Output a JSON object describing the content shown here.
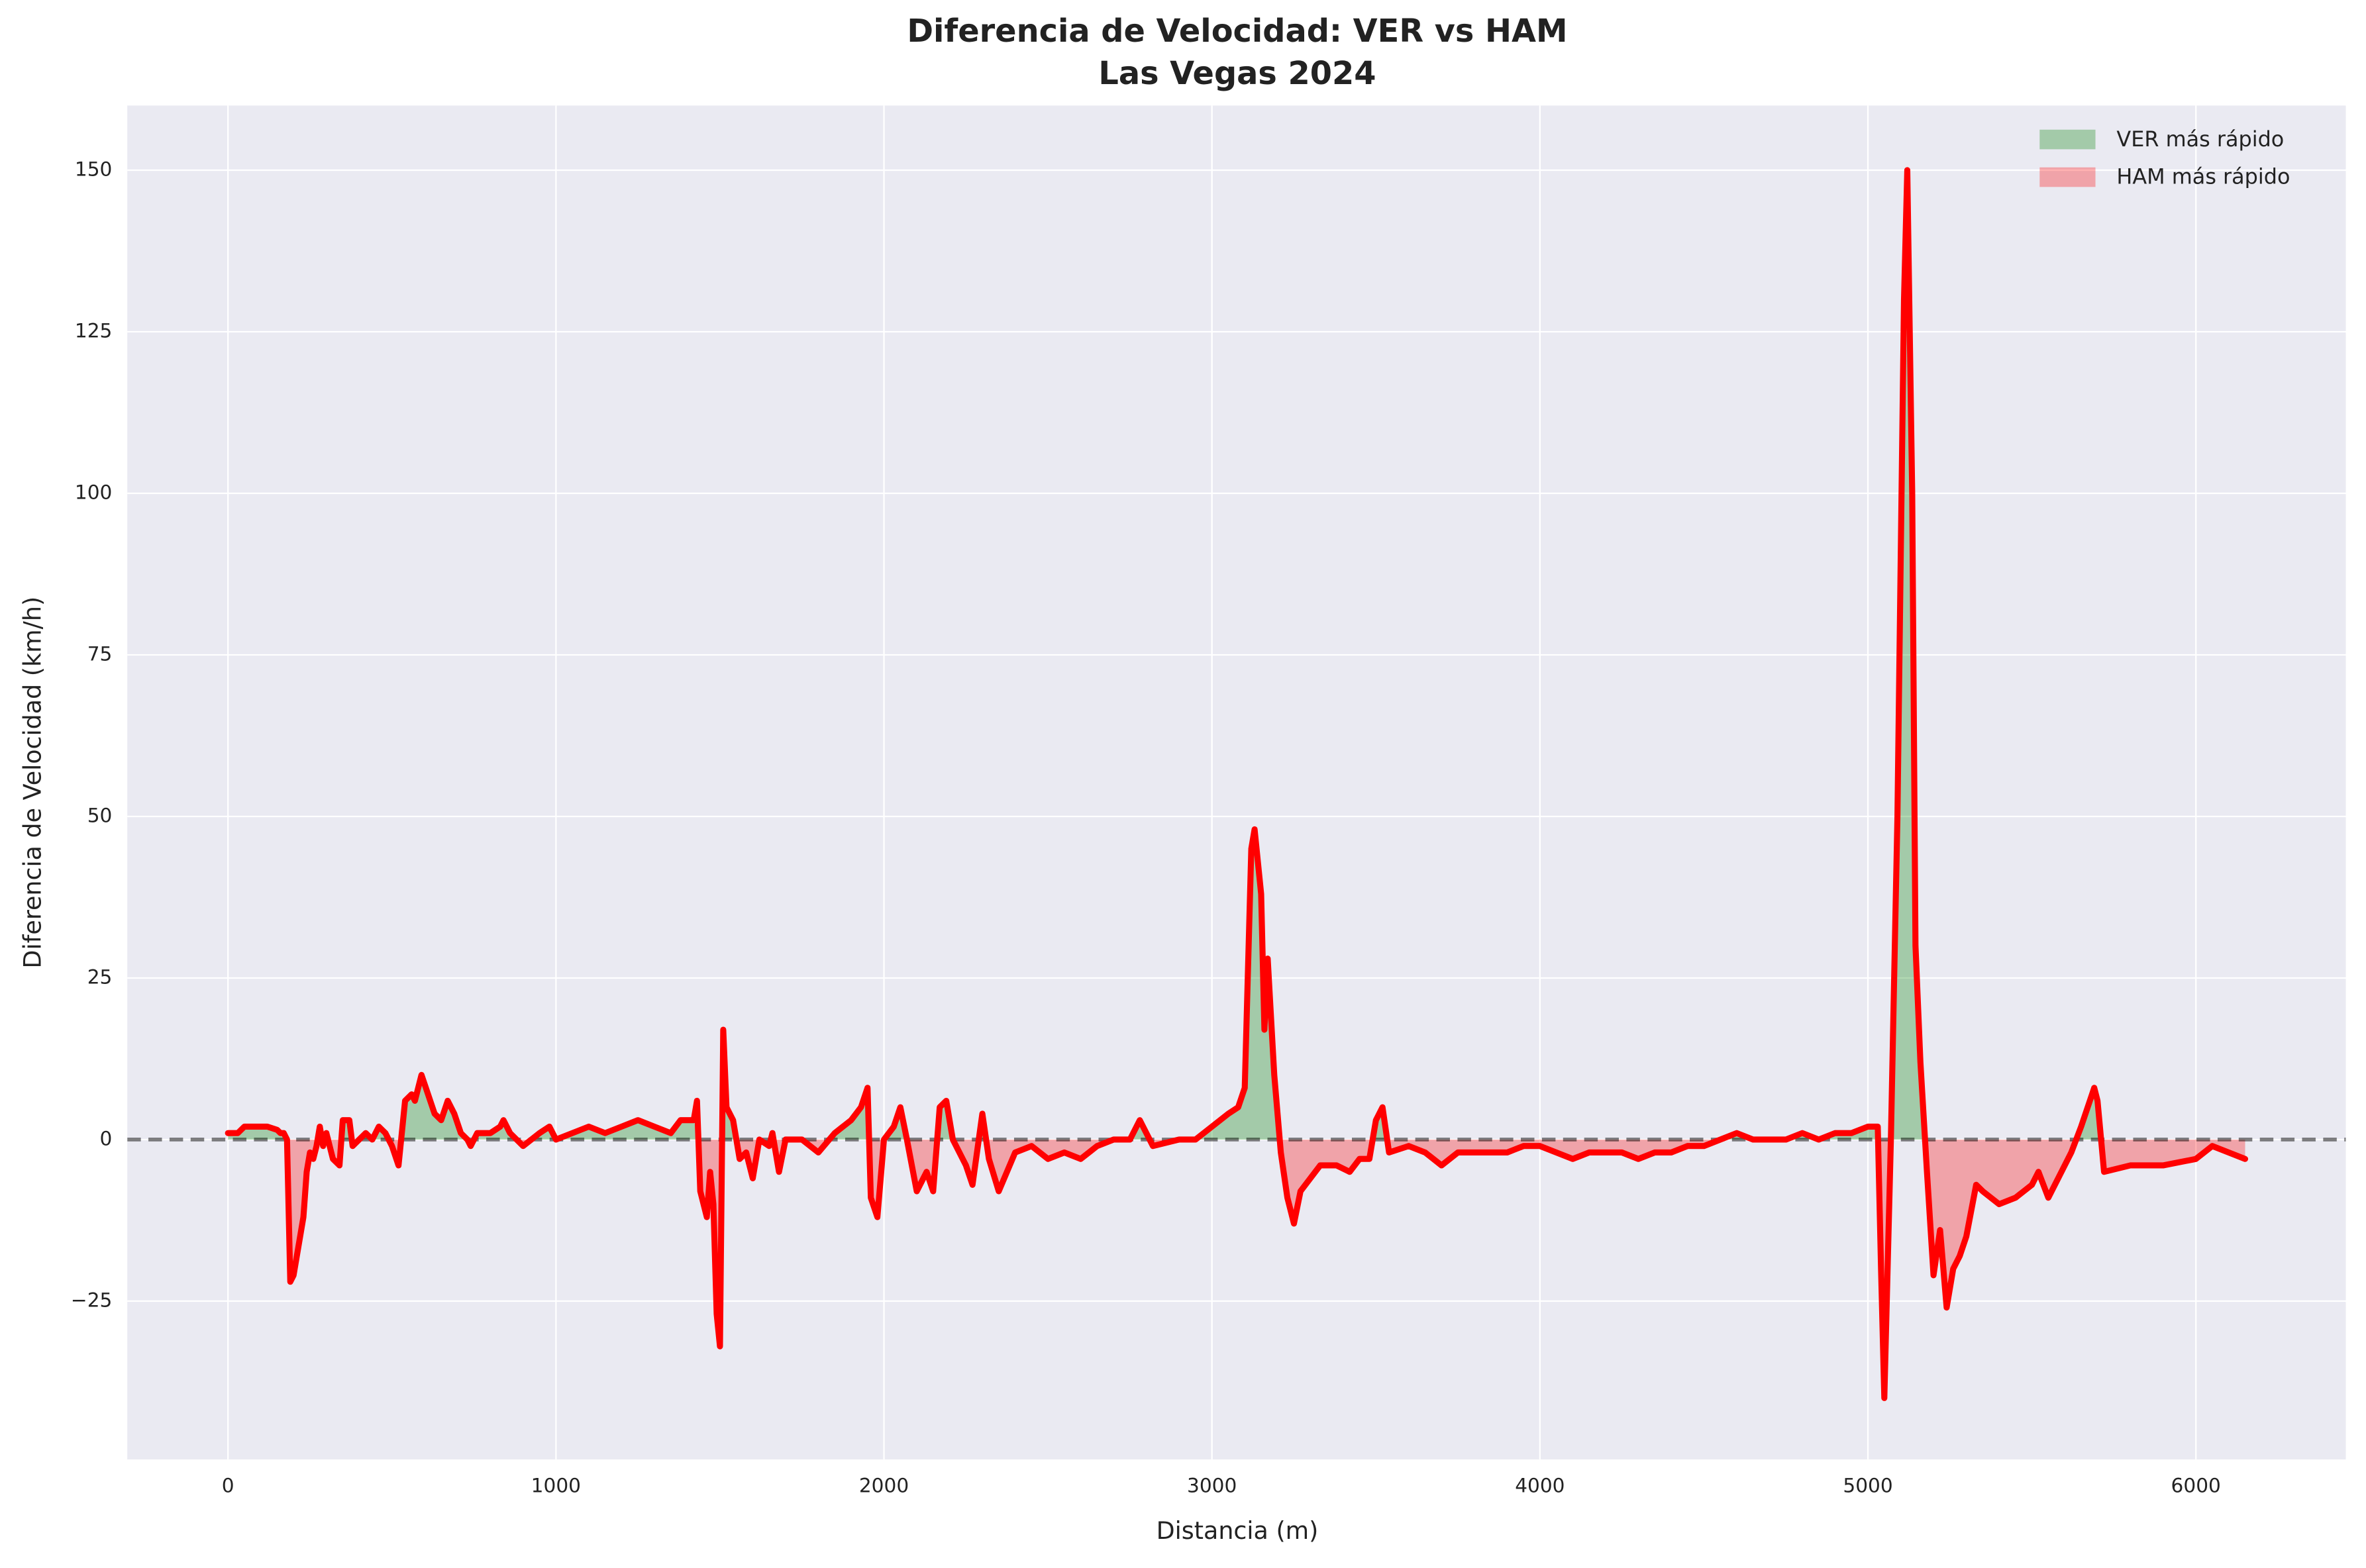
{
  "chart_data": {
    "type": "line",
    "title": "Diferencia de Velocidad: VER vs HAM",
    "subtitle": "Las Vegas 2024",
    "x_label": "Distancia (m)",
    "y_label": "Diferencia de Velocidad (km/h)",
    "x": [
      0,
      30,
      50,
      100,
      120,
      150,
      160,
      170,
      180,
      190,
      200,
      210,
      220,
      230,
      240,
      250,
      260,
      270,
      280,
      290,
      300,
      320,
      340,
      350,
      370,
      380,
      400,
      420,
      440,
      460,
      480,
      500,
      520,
      540,
      560,
      570,
      590,
      610,
      630,
      650,
      670,
      690,
      710,
      730,
      740,
      760,
      800,
      830,
      840,
      860,
      900,
      950,
      980,
      1000,
      1050,
      1100,
      1150,
      1200,
      1250,
      1300,
      1350,
      1380,
      1420,
      1430,
      1440,
      1460,
      1470,
      1480,
      1490,
      1500,
      1510,
      1520,
      1540,
      1560,
      1580,
      1600,
      1620,
      1650,
      1660,
      1680,
      1700,
      1750,
      1800,
      1850,
      1900,
      1930,
      1950,
      1960,
      1980,
      2000,
      2030,
      2050,
      2070,
      2100,
      2130,
      2150,
      2170,
      2190,
      2210,
      2250,
      2270,
      2300,
      2320,
      2350,
      2400,
      2450,
      2500,
      2550,
      2600,
      2650,
      2700,
      2750,
      2780,
      2820,
      2900,
      2950,
      3000,
      3050,
      3080,
      3100,
      3120,
      3130,
      3150,
      3160,
      3170,
      3190,
      3210,
      3230,
      3250,
      3270,
      3300,
      3330,
      3380,
      3420,
      3450,
      3480,
      3500,
      3520,
      3540,
      3600,
      3650,
      3700,
      3750,
      3800,
      3850,
      3900,
      3950,
      4000,
      4050,
      4100,
      4150,
      4200,
      4250,
      4300,
      4350,
      4400,
      4450,
      4500,
      4550,
      4600,
      4650,
      4700,
      4750,
      4800,
      4850,
      4900,
      4950,
      5000,
      5030,
      5040,
      5050,
      5070,
      5090,
      5110,
      5120,
      5135,
      5145,
      5160,
      5180,
      5200,
      5220,
      5240,
      5260,
      5280,
      5300,
      5330,
      5350,
      5400,
      5450,
      5500,
      5520,
      5550,
      5580,
      5620,
      5650,
      5690,
      5700,
      5720,
      5800,
      5900,
      6000,
      6050,
      6100,
      6150
    ],
    "values": [
      1,
      1,
      2,
      2,
      2,
      1.5,
      1,
      1,
      0,
      -22,
      -21,
      -18,
      -15,
      -12,
      -5,
      -2,
      -3,
      -1,
      2,
      -1,
      1,
      -3,
      -4,
      3,
      3,
      -1,
      0,
      1,
      0,
      2,
      1,
      -1,
      -4,
      6,
      7,
      6,
      10,
      7,
      4,
      3,
      6,
      4,
      1,
      0,
      -1,
      1,
      1,
      2,
      3,
      1,
      -1,
      1,
      2,
      0,
      1,
      2,
      1,
      2,
      3,
      2,
      1,
      3,
      3,
      6,
      -8,
      -12,
      -5,
      -10,
      -27,
      -32,
      17,
      5,
      3,
      -3,
      -2,
      -6,
      0,
      -1,
      1,
      -5,
      0,
      0,
      -2,
      1,
      3,
      5,
      8,
      -9,
      -12,
      0,
      2,
      5,
      0,
      -8,
      -5,
      -8,
      5,
      6,
      0,
      -4,
      -7,
      4,
      -3,
      -8,
      -2,
      -1,
      -3,
      -2,
      -3,
      -1,
      0,
      0,
      3,
      -1,
      0,
      0,
      2,
      4,
      5,
      8,
      45,
      48,
      38,
      17,
      28,
      10,
      -2,
      -9,
      -13,
      -8,
      -6,
      -4,
      -4,
      -5,
      -3,
      -3,
      3,
      5,
      -2,
      -1,
      -2,
      -4,
      -2,
      -2,
      -2,
      -2,
      -1,
      -1,
      -2,
      -3,
      -2,
      -2,
      -2,
      -3,
      -2,
      -2,
      -1,
      -1,
      0,
      1,
      0,
      0,
      0,
      1,
      0,
      1,
      1,
      2,
      2,
      -20,
      -40,
      0,
      50,
      130,
      150,
      100,
      30,
      12,
      -5,
      -21,
      -14,
      -26,
      -20,
      -18,
      -15,
      -7,
      -8,
      -10,
      -9,
      -7,
      -5,
      -9,
      -6,
      -2,
      2,
      8,
      6,
      -5,
      -4,
      -4,
      -3,
      -1,
      -2,
      -3
    ],
    "line_color": "#ff0000",
    "fills": [
      {
        "name": "VER más rápido",
        "color": "#008000",
        "alpha": 0.3,
        "where": "above"
      },
      {
        "name": "HAM más rápido",
        "color": "#ff0000",
        "alpha": 0.3,
        "where": "below"
      }
    ],
    "reference_line": {
      "value": 0,
      "color": "#000000",
      "alpha": 0.5,
      "dashed": true
    },
    "xlim": [
      -307,
      6457
    ],
    "ylim": [
      -49.5,
      160
    ],
    "xticks": [
      0,
      1000,
      2000,
      3000,
      4000,
      5000,
      6000
    ],
    "yticks": [
      {
        "value": -25,
        "label": "−25"
      },
      0,
      25,
      50,
      75,
      100,
      125,
      150
    ],
    "grid": true,
    "legend": "upper right"
  }
}
